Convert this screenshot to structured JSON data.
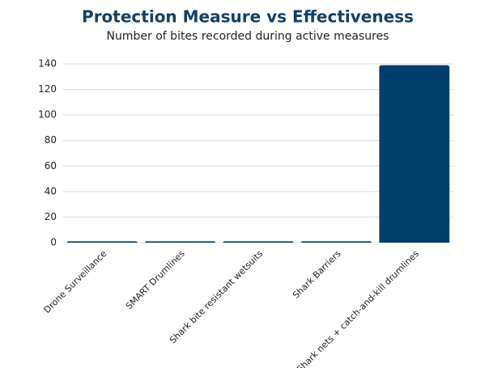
{
  "chart_data": {
    "type": "bar",
    "title": "Protection Measure vs Effectiveness",
    "subtitle": "Number of bites recorded during active measures",
    "categories": [
      "Drone Surveillance",
      "SMART Drumlines",
      "Shark bite resistant wetsuits",
      "Shark Barriers",
      "Shark nets + catch-and-kill drumlines"
    ],
    "values": [
      1,
      1,
      1,
      1,
      139
    ],
    "color": "#003f6b",
    "ylim": [
      0,
      140
    ],
    "yticks": [
      0,
      20,
      40,
      60,
      80,
      100,
      120,
      140
    ],
    "grid": true
  }
}
